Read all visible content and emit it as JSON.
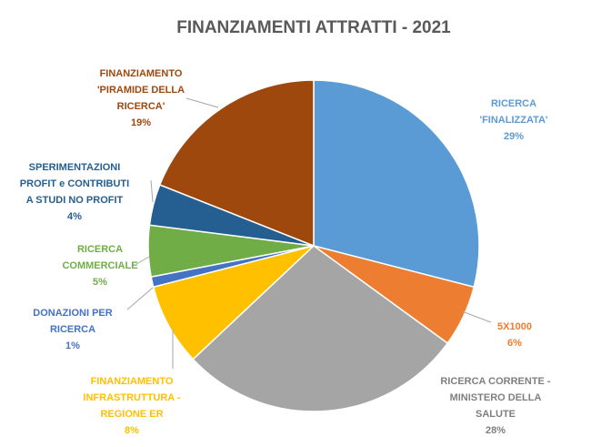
{
  "chart_data": {
    "type": "pie",
    "title": "FINANZIAMENTI ATTRATTI - 2021",
    "categories": [
      "RICERCA\n'FINALIZZATA'",
      "5X1000",
      "RICERCA CORRENTE -\nMINISTERO DELLA\nSALUTE",
      "FINANZIAMENTO\nINFRASTRUTTURA -\nREGIONE ER",
      "DONAZIONI PER\nRICERCA",
      "RICERCA\nCOMMERCIALE",
      "SPERIMENTAZIONI\nPROFIT e CONTRIBUTI\nA STUDI NO PROFIT",
      "FINANZIAMENTO\n'PIRAMIDE DELLA\nRICERCA'"
    ],
    "values": [
      29,
      6,
      28,
      8,
      1,
      5,
      4,
      19
    ],
    "value_labels": [
      "29%",
      "6%",
      "28%",
      "8%",
      "1%",
      "5%",
      "4%",
      "19%"
    ],
    "colors": [
      "#5b9bd5",
      "#ed7d31",
      "#a5a5a5",
      "#ffc000",
      "#4472c4",
      "#70ad47",
      "#255e91",
      "#9e480e"
    ],
    "label_colors": [
      "#5b9bd5",
      "#ed7d31",
      "#7f7f7f",
      "#ffc000",
      "#4472c4",
      "#70ad47",
      "#255e91",
      "#9e480e"
    ]
  }
}
